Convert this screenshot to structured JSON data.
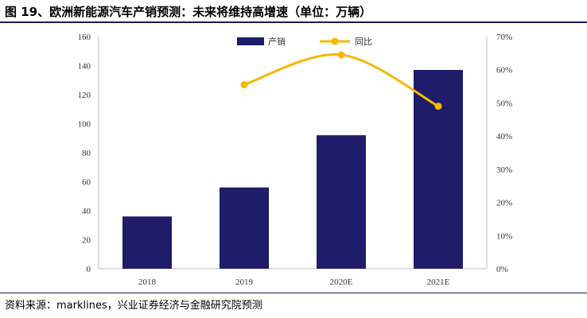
{
  "title": "图 19、欧洲新能源汽车产销预测：未来将维持高增速（单位：万辆）",
  "source": "资料来源：marklines，兴业证券经济与金融研究院预测",
  "colors": {
    "bar": "#1f1c6a",
    "line": "#f5b800",
    "rule": "#1c1c5a"
  },
  "chart_data": {
    "type": "bar",
    "categories": [
      "2018",
      "2019",
      "2020E",
      "2021E"
    ],
    "series": [
      {
        "name": "产销",
        "type": "bar",
        "axis": "left",
        "values": [
          36,
          56,
          92,
          137
        ]
      },
      {
        "name": "同比",
        "type": "line",
        "axis": "right",
        "values": [
          null,
          0.555,
          0.645,
          0.49
        ]
      }
    ],
    "ylim": [
      0,
      160
    ],
    "yticks": [
      "0",
      "20",
      "40",
      "60",
      "80",
      "100",
      "120",
      "140",
      "160"
    ],
    "y2lim": [
      0,
      0.7
    ],
    "y2ticks": [
      "0%",
      "10%",
      "20%",
      "30%",
      "40%",
      "50%",
      "60%",
      "70%"
    ],
    "legend_position": "top-center",
    "grid": false
  }
}
